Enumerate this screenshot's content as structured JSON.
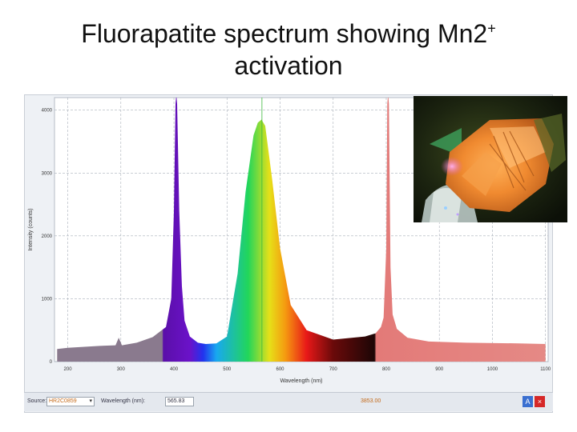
{
  "title": {
    "text": "Fluorapatite spectrum showing Mn2",
    "superscript": "+",
    "line2": "activation"
  },
  "statusbar": {
    "source_label": "Source:",
    "source_value": "HR2C0859",
    "wavelength_label": "Wavelength (nm):",
    "wavelength_value": "565.83",
    "readout_value": "3853.00",
    "icons": [
      "chart-mode-icon",
      "close-icon"
    ]
  },
  "photo": {
    "description_icon": "mineral-photo"
  },
  "colors": {
    "band_violet": "#5a0fa8",
    "band_red": "#e37a78",
    "grid": "#9aa2ad",
    "plot_bg": "#ffffff"
  },
  "chart_data": {
    "type": "area",
    "xlabel": "Wavelength (nm)",
    "ylabel": "Intensity (counts)",
    "xlim": [
      175,
      1105
    ],
    "ylim": [
      0,
      4200
    ],
    "x_ticks": [
      200,
      300,
      400,
      500,
      600,
      700,
      800,
      900,
      1000,
      1100
    ],
    "x_tick_labels": [
      "200",
      "300",
      "400",
      "500",
      "600",
      "700",
      "800",
      "900",
      "1000",
      "1100"
    ],
    "y_ticks": [
      0,
      1000,
      2000,
      3000,
      4000
    ],
    "y_tick_labels": [
      "0",
      "1000",
      "2000",
      "3000",
      "4000"
    ],
    "grid": true,
    "marker_wavelength": 565.83,
    "series": [
      {
        "x": [
          180,
          200,
          260,
          290,
          296,
          302,
          330,
          360,
          385,
          395,
          400,
          403,
          404,
          405,
          406,
          410,
          415,
          420,
          430,
          445,
          460,
          480,
          500,
          520,
          535,
          550,
          558,
          565,
          572,
          585,
          600,
          620,
          650,
          700,
          760,
          780,
          790,
          795,
          800,
          802,
          803,
          804,
          805,
          808,
          812,
          820,
          840,
          880,
          950,
          1050,
          1100
        ],
        "values": [
          200,
          220,
          250,
          260,
          380,
          260,
          300,
          390,
          550,
          1000,
          2400,
          4100,
          4200,
          4200,
          4100,
          2400,
          1200,
          650,
          400,
          300,
          280,
          290,
          400,
          1400,
          2700,
          3600,
          3800,
          3850,
          3750,
          2900,
          1800,
          900,
          500,
          350,
          400,
          450,
          550,
          700,
          1800,
          4100,
          4200,
          4200,
          4100,
          1500,
          750,
          520,
          380,
          320,
          300,
          290,
          280
        ]
      }
    ]
  }
}
